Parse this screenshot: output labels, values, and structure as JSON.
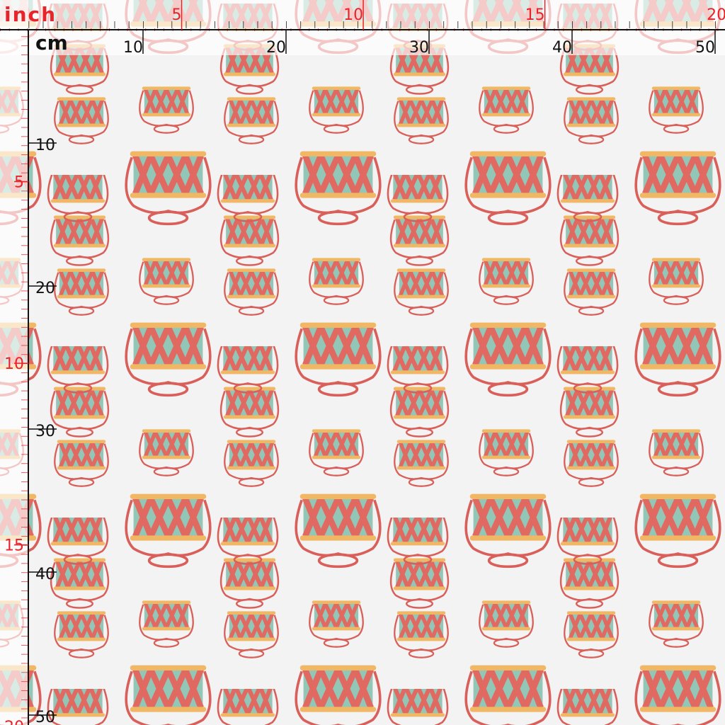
{
  "ruler": {
    "inch_unit": "inch",
    "cm_unit": "cm",
    "top_inch_labels": [
      5,
      10,
      15,
      20
    ],
    "top_cm_labels": [
      10,
      20,
      30,
      40,
      50
    ],
    "left_cm_labels": [
      10,
      20,
      30,
      40,
      50
    ],
    "left_inch_labels": [
      5,
      10,
      15,
      20
    ]
  }
}
